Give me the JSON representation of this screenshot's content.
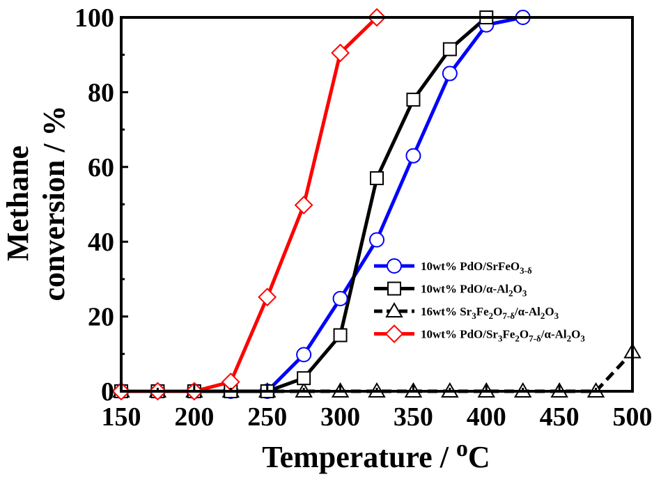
{
  "chart_data": {
    "type": "line",
    "xlabel": "Temperature / ",
    "xlabel_sup": "o",
    "xlabel_unit": "C",
    "ylabel_line1": "Methane",
    "ylabel_line2": "conversion  / %",
    "xlim": [
      150,
      500
    ],
    "ylim": [
      0,
      100
    ],
    "xticks": [
      150,
      200,
      250,
      300,
      350,
      400,
      450,
      500
    ],
    "yticks": [
      0,
      20,
      40,
      60,
      80,
      100
    ],
    "legend_position": "lower-right",
    "series": [
      {
        "name": "10wt% PdO/SrFeO3-δ",
        "legend": [
          [
            "10wt% PdO/SrFeO",
            ""
          ],
          [
            "3-δ",
            "sub"
          ]
        ],
        "color": "#0000ff",
        "marker": "circle",
        "dashed": false,
        "x": [
          150,
          175,
          200,
          225,
          250,
          275,
          300,
          325,
          350,
          375,
          400,
          425
        ],
        "y": [
          0,
          0,
          0,
          0,
          0,
          9.8,
          24.8,
          40.5,
          63,
          85,
          98,
          100
        ]
      },
      {
        "name": "10wt% PdO/α-Al2O3",
        "legend": [
          [
            "10wt% PdO/α-Al",
            ""
          ],
          [
            "2",
            "sub"
          ],
          [
            "O",
            ""
          ],
          [
            "3",
            "sub"
          ]
        ],
        "color": "#000000",
        "marker": "square",
        "dashed": false,
        "x": [
          150,
          175,
          200,
          225,
          250,
          275,
          300,
          325,
          350,
          375,
          400
        ],
        "y": [
          0,
          0,
          0,
          0,
          0,
          3.5,
          15,
          57,
          78,
          91.5,
          100
        ]
      },
      {
        "name": "16wt% Sr3Fe2O7-δ/α-Al2O3",
        "legend": [
          [
            "16wt% Sr",
            ""
          ],
          [
            "3",
            "sub"
          ],
          [
            "Fe",
            ""
          ],
          [
            "2",
            "sub"
          ],
          [
            "O",
            ""
          ],
          [
            "7-δ",
            "sub"
          ],
          [
            "/α-Al",
            ""
          ],
          [
            "2",
            "sub"
          ],
          [
            "O",
            ""
          ],
          [
            "3",
            "sub"
          ]
        ],
        "color": "#000000",
        "marker": "triangle",
        "dashed": true,
        "x": [
          150,
          175,
          200,
          225,
          250,
          275,
          300,
          325,
          350,
          375,
          400,
          425,
          450,
          475,
          500
        ],
        "y": [
          0,
          0,
          0,
          0,
          0,
          0,
          0,
          0,
          0,
          0,
          0,
          0,
          0,
          0,
          10.5
        ]
      },
      {
        "name": "10wt% PdO/Sr3Fe2O7-δ/α-Al2O3",
        "legend": [
          [
            "10wt% PdO/Sr",
            ""
          ],
          [
            "3",
            "sub"
          ],
          [
            "Fe",
            ""
          ],
          [
            "2",
            "sub"
          ],
          [
            "O",
            ""
          ],
          [
            "7-δ",
            "sub"
          ],
          [
            "/α-Al",
            ""
          ],
          [
            "2",
            "sub"
          ],
          [
            "O",
            ""
          ],
          [
            "3",
            "sub"
          ]
        ],
        "color": "#ff0000",
        "marker": "diamond",
        "dashed": false,
        "x": [
          150,
          175,
          200,
          225,
          250,
          275,
          300,
          325
        ],
        "y": [
          0,
          0,
          0,
          2.5,
          25.2,
          49.8,
          90.5,
          100
        ]
      }
    ]
  }
}
